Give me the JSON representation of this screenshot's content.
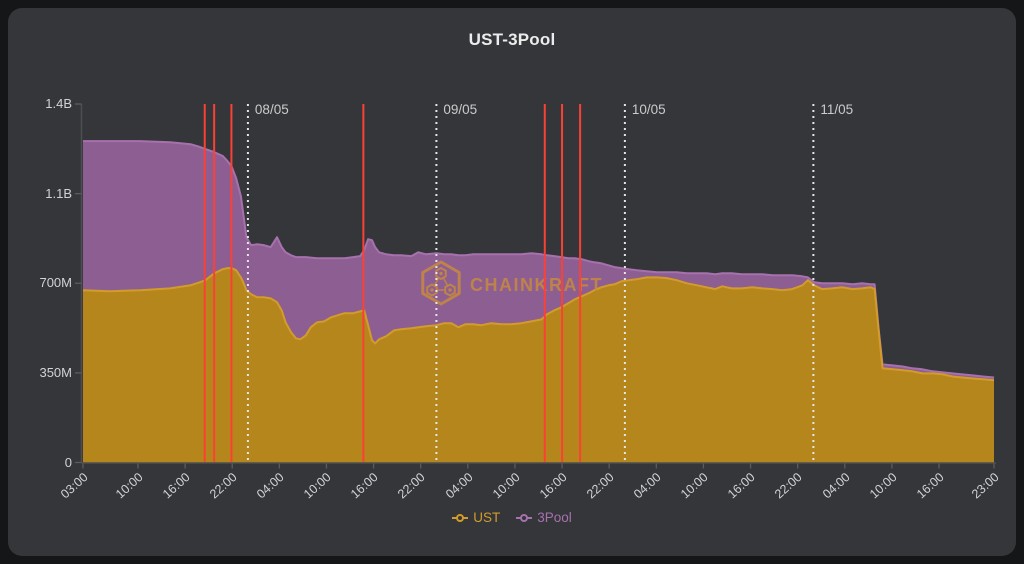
{
  "title": "UST-3Pool",
  "watermark": {
    "text": "CHAINKRAFT",
    "color": "#c98b3c"
  },
  "legend": [
    {
      "label": "UST",
      "color": "#d39c2a"
    },
    {
      "label": "3Pool",
      "color": "#a671ad"
    }
  ],
  "colors": {
    "page_bg": "#141617",
    "panel_bg": "#343639",
    "axis": "#4c4e50",
    "tick": "#5a5c5e",
    "tick_text": "#d2d3d4",
    "day_line": "#e6e6e6",
    "event_line": "#fb4136"
  },
  "chart_data": {
    "type": "area",
    "stacked": true,
    "title": "UST-3Pool",
    "x_unit": "hours since 07/05 03:00",
    "xlim": [
      0,
      116
    ],
    "ylim": [
      0,
      1400
    ],
    "y_unit": "pool balance (millions of coins)",
    "x": [
      0,
      3.4,
      7.3,
      11.1,
      13.7,
      14.9,
      15.6,
      16.7,
      17.8,
      18.4,
      18.9,
      19.5,
      20.1,
      20.4,
      20.8,
      21.4,
      22.2,
      23,
      23.9,
      24.7,
      25.3,
      25.8,
      26.5,
      27.1,
      27.7,
      28.4,
      29,
      29.8,
      30.7,
      31.6,
      32.4,
      33.3,
      34.4,
      35.3,
      35.8,
      36.3,
      36.8,
      37.2,
      37.7,
      38.6,
      39.6,
      40.5,
      41.8,
      42.7,
      43.7,
      45,
      46,
      46.9,
      47.8,
      48.7,
      49.7,
      50.7,
      52,
      53.3,
      54.5,
      55.8,
      57.1,
      58.4,
      59.1,
      60,
      60.9,
      61.8,
      62.6,
      63.5,
      64.4,
      65.1,
      66,
      66.9,
      67.7,
      68.6,
      69.5,
      70.5,
      71.8,
      73.1,
      74.3,
      75.6,
      76.9,
      78.2,
      79.4,
      80.5,
      81.4,
      82.6,
      83.9,
      85.2,
      86.5,
      87.8,
      89,
      90.3,
      91.6,
      92.3,
      93.1,
      94.1,
      95.4,
      96.7,
      98,
      99.2,
      100.3,
      100.8,
      101.3,
      101.8,
      103.1,
      104.4,
      105.6,
      106.9,
      108.2,
      109.5,
      110.7,
      112,
      113.3,
      114.6,
      116
    ],
    "series": [
      {
        "name": "UST",
        "fill": "#b5861c",
        "line": "#d39c2a",
        "values": [
          673,
          669,
          673,
          680,
          692,
          704,
          712,
          739,
          755,
          759,
          759,
          751,
          723,
          704,
          673,
          657,
          645,
          645,
          641,
          626,
          594,
          547,
          508,
          485,
          481,
          497,
          528,
          547,
          551,
          567,
          575,
          583,
          583,
          590,
          594,
          536,
          477,
          465,
          481,
          493,
          516,
          520,
          524,
          528,
          532,
          536,
          544,
          544,
          528,
          540,
          540,
          536,
          544,
          540,
          540,
          544,
          551,
          559,
          579,
          594,
          606,
          622,
          637,
          649,
          661,
          673,
          684,
          692,
          696,
          708,
          712,
          716,
          723,
          723,
          720,
          712,
          700,
          692,
          684,
          677,
          688,
          680,
          680,
          684,
          680,
          677,
          673,
          677,
          692,
          712,
          692,
          677,
          680,
          684,
          677,
          680,
          684,
          677,
          516,
          368,
          364,
          360,
          356,
          348,
          348,
          344,
          336,
          332,
          328,
          325,
          321
        ]
      },
      {
        "name": "3Pool",
        "fill": "#8d5e92",
        "line": "#a671ad",
        "values": [
          582,
          586,
          582,
          571,
          551,
          528,
          512,
          473,
          442,
          418,
          399,
          360,
          317,
          270,
          207,
          192,
          207,
          204,
          200,
          254,
          247,
          274,
          301,
          317,
          321,
          305,
          272,
          251,
          247,
          231,
          223,
          215,
          219,
          216,
          235,
          336,
          391,
          376,
          340,
          320,
          293,
          289,
          282,
          293,
          281,
          281,
          269,
          269,
          281,
          269,
          273,
          277,
          269,
          273,
          273,
          269,
          266,
          254,
          230,
          212,
          196,
          176,
          161,
          145,
          125,
          109,
          94,
          78,
          67,
          51,
          43,
          35,
          24,
          20,
          23,
          31,
          39,
          47,
          55,
          58,
          51,
          59,
          55,
          51,
          55,
          54,
          58,
          54,
          35,
          11,
          12,
          23,
          20,
          16,
          19,
          20,
          12,
          19,
          8,
          15,
          15,
          15,
          12,
          16,
          8,
          8,
          12,
          12,
          12,
          11,
          11
        ]
      }
    ],
    "y_ticks": [
      {
        "v": 0,
        "label": "0"
      },
      {
        "v": 350,
        "label": "350M"
      },
      {
        "v": 700,
        "label": "700M"
      },
      {
        "v": 1050,
        "label": "1.1B"
      },
      {
        "v": 1400,
        "label": "1.4B"
      }
    ],
    "x_ticks": [
      {
        "t": 0,
        "label": "03:00"
      },
      {
        "t": 7,
        "label": "10:00"
      },
      {
        "t": 13,
        "label": "16:00"
      },
      {
        "t": 19,
        "label": "22:00"
      },
      {
        "t": 25,
        "label": "04:00"
      },
      {
        "t": 31,
        "label": "10:00"
      },
      {
        "t": 37,
        "label": "16:00"
      },
      {
        "t": 43,
        "label": "22:00"
      },
      {
        "t": 49,
        "label": "04:00"
      },
      {
        "t": 55,
        "label": "10:00"
      },
      {
        "t": 61,
        "label": "16:00"
      },
      {
        "t": 67,
        "label": "22:00"
      },
      {
        "t": 73,
        "label": "04:00"
      },
      {
        "t": 79,
        "label": "10:00"
      },
      {
        "t": 85,
        "label": "16:00"
      },
      {
        "t": 91,
        "label": "22:00"
      },
      {
        "t": 97,
        "label": "04:00"
      },
      {
        "t": 103,
        "label": "10:00"
      },
      {
        "t": 109,
        "label": "16:00"
      },
      {
        "t": 116,
        "label": "23:00"
      }
    ],
    "day_markers": [
      {
        "t": 21,
        "label": "08/05"
      },
      {
        "t": 45,
        "label": "09/05"
      },
      {
        "t": 69,
        "label": "10/05"
      },
      {
        "t": 93,
        "label": "11/05"
      }
    ],
    "event_lines": {
      "t": [
        15.5,
        16.7,
        18.9,
        35.7,
        58.8,
        61.0,
        63.3
      ]
    },
    "legend_position": "bottom",
    "grid": false
  }
}
